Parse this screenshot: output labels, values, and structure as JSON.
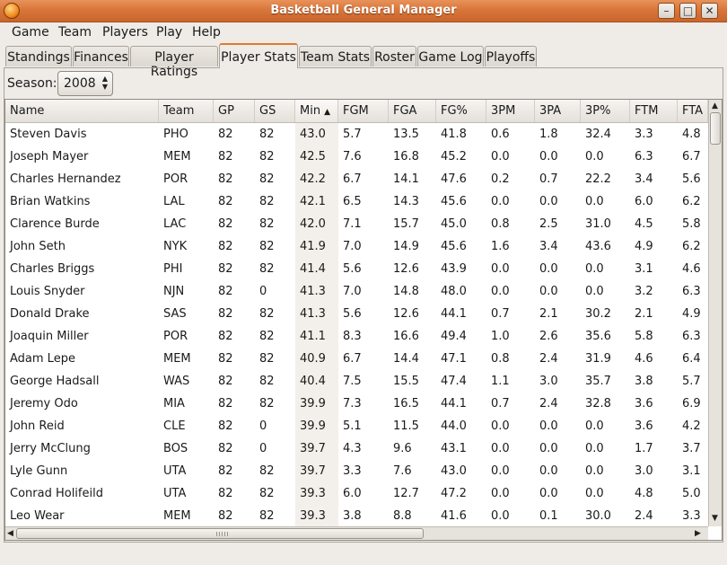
{
  "window": {
    "title": "Basketball General Manager"
  },
  "menu": [
    "Game",
    "Team",
    "Players",
    "Play",
    "Help"
  ],
  "tabs": [
    "Standings",
    "Finances",
    "Player Ratings",
    "Player Stats",
    "Team Stats",
    "Roster",
    "Game Log",
    "Playoffs"
  ],
  "active_tab": "Player Stats",
  "season": {
    "label": "Season:",
    "value": "2008"
  },
  "table": {
    "columns": [
      "Name",
      "Team",
      "GP",
      "GS",
      "Min",
      "FGM",
      "FGA",
      "FG%",
      "3PM",
      "3PA",
      "3P%",
      "FTM",
      "FTA"
    ],
    "sorted_column": "Min",
    "sort_direction": "descending",
    "rows": [
      [
        "Steven Davis",
        "PHO",
        "82",
        "82",
        "43.0",
        "5.7",
        "13.5",
        "41.8",
        "0.6",
        "1.8",
        "32.4",
        "3.3",
        "4.8"
      ],
      [
        "Joseph Mayer",
        "MEM",
        "82",
        "82",
        "42.5",
        "7.6",
        "16.8",
        "45.2",
        "0.0",
        "0.0",
        "0.0",
        "6.3",
        "6.7"
      ],
      [
        "Charles Hernandez",
        "POR",
        "82",
        "82",
        "42.2",
        "6.7",
        "14.1",
        "47.6",
        "0.2",
        "0.7",
        "22.2",
        "3.4",
        "5.6"
      ],
      [
        "Brian Watkins",
        "LAL",
        "82",
        "82",
        "42.1",
        "6.5",
        "14.3",
        "45.6",
        "0.0",
        "0.0",
        "0.0",
        "6.0",
        "6.2"
      ],
      [
        "Clarence Burde",
        "LAC",
        "82",
        "82",
        "42.0",
        "7.1",
        "15.7",
        "45.0",
        "0.8",
        "2.5",
        "31.0",
        "4.5",
        "5.8"
      ],
      [
        "John Seth",
        "NYK",
        "82",
        "82",
        "41.9",
        "7.0",
        "14.9",
        "45.6",
        "1.6",
        "3.4",
        "43.6",
        "4.9",
        "6.2"
      ],
      [
        "Charles Briggs",
        "PHI",
        "82",
        "82",
        "41.4",
        "5.6",
        "12.6",
        "43.9",
        "0.0",
        "0.0",
        "0.0",
        "3.1",
        "4.6"
      ],
      [
        "Louis Snyder",
        "NJN",
        "82",
        "0",
        "41.3",
        "7.0",
        "14.8",
        "48.0",
        "0.0",
        "0.0",
        "0.0",
        "3.2",
        "6.3"
      ],
      [
        "Donald Drake",
        "SAS",
        "82",
        "82",
        "41.3",
        "5.6",
        "12.6",
        "44.1",
        "0.7",
        "2.1",
        "30.2",
        "2.1",
        "4.9"
      ],
      [
        "Joaquin Miller",
        "POR",
        "82",
        "82",
        "41.1",
        "8.3",
        "16.6",
        "49.4",
        "1.0",
        "2.6",
        "35.6",
        "5.8",
        "6.3"
      ],
      [
        "Adam Lepe",
        "MEM",
        "82",
        "82",
        "40.9",
        "6.7",
        "14.4",
        "47.1",
        "0.8",
        "2.4",
        "31.9",
        "4.6",
        "6.4"
      ],
      [
        "George Hadsall",
        "WAS",
        "82",
        "82",
        "40.4",
        "7.5",
        "15.5",
        "47.4",
        "1.1",
        "3.0",
        "35.7",
        "3.8",
        "5.7"
      ],
      [
        "Jeremy Odo",
        "MIA",
        "82",
        "82",
        "39.9",
        "7.3",
        "16.5",
        "44.1",
        "0.7",
        "2.4",
        "32.8",
        "3.6",
        "6.9"
      ],
      [
        "John Reid",
        "CLE",
        "82",
        "0",
        "39.9",
        "5.1",
        "11.5",
        "44.0",
        "0.0",
        "0.0",
        "0.0",
        "3.6",
        "4.2"
      ],
      [
        "Jerry McClung",
        "BOS",
        "82",
        "0",
        "39.7",
        "4.3",
        "9.6",
        "43.1",
        "0.0",
        "0.0",
        "0.0",
        "1.7",
        "3.7"
      ],
      [
        "Lyle Gunn",
        "UTA",
        "82",
        "82",
        "39.7",
        "3.3",
        "7.6",
        "43.0",
        "0.0",
        "0.0",
        "0.0",
        "3.0",
        "3.1"
      ],
      [
        "Conrad Holifeild",
        "UTA",
        "82",
        "82",
        "39.3",
        "6.0",
        "12.7",
        "47.2",
        "0.0",
        "0.0",
        "0.0",
        "4.8",
        "5.0"
      ],
      [
        "Leo Wear",
        "MEM",
        "82",
        "82",
        "39.3",
        "3.8",
        "8.8",
        "41.6",
        "0.0",
        "0.1",
        "30.0",
        "2.4",
        "3.3"
      ]
    ]
  }
}
